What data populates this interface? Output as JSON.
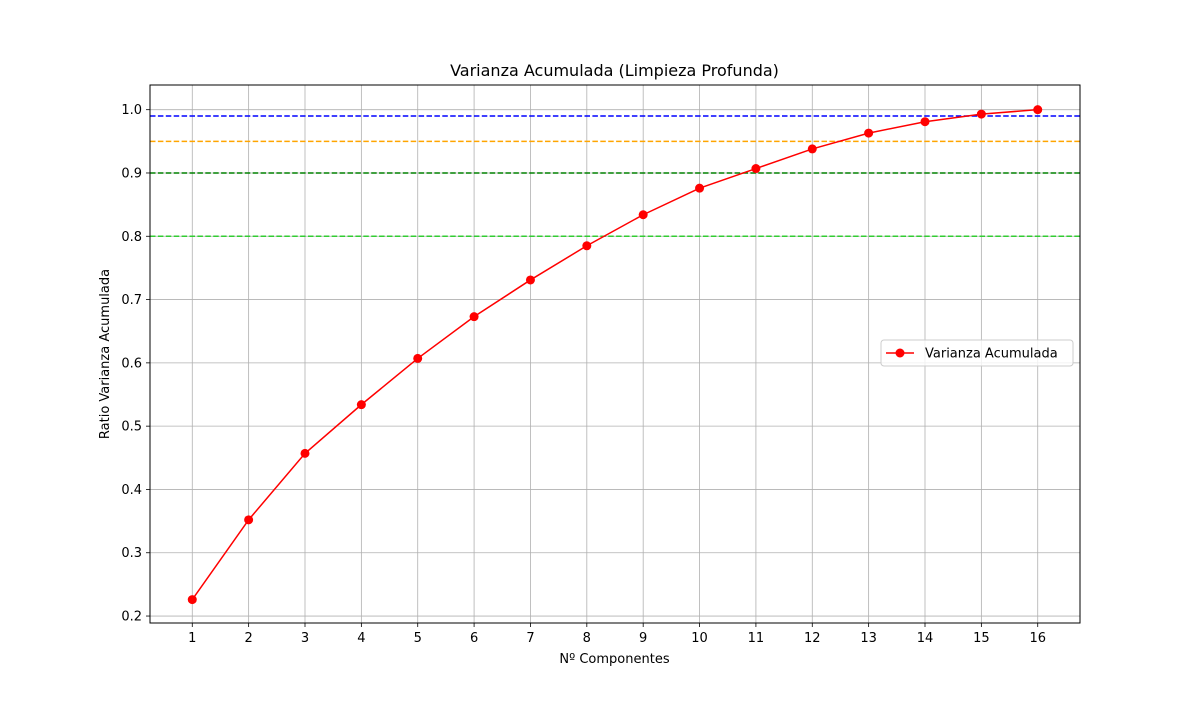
{
  "chart_data": {
    "type": "line",
    "title": "Varianza Acumulada (Limpieza Profunda)",
    "xlabel": "Nº Componentes",
    "ylabel": "Ratio Varianza Acumulada",
    "x": [
      1,
      2,
      3,
      4,
      5,
      6,
      7,
      8,
      9,
      10,
      11,
      12,
      13,
      14,
      15,
      16
    ],
    "x_tick_labels": [
      "1",
      "2",
      "3",
      "4",
      "5",
      "6",
      "7",
      "8",
      "9",
      "10",
      "11",
      "12",
      "13",
      "14",
      "15",
      "16"
    ],
    "y_tick_values": [
      0.2,
      0.3,
      0.4,
      0.5,
      0.6,
      0.7,
      0.8,
      0.9,
      1.0
    ],
    "y_tick_labels": [
      "0.2",
      "0.3",
      "0.4",
      "0.5",
      "0.6",
      "0.7",
      "0.8",
      "0.9",
      "1.0"
    ],
    "xlim": [
      0.25,
      16.75
    ],
    "ylim": [
      0.189,
      1.039
    ],
    "grid": true,
    "legend_position": "center-right",
    "series": [
      {
        "name": "Varianza Acumulada",
        "color": "#ff0000",
        "marker": "circle",
        "values": [
          0.226,
          0.352,
          0.457,
          0.534,
          0.607,
          0.673,
          0.731,
          0.785,
          0.834,
          0.876,
          0.907,
          0.938,
          0.963,
          0.981,
          0.993,
          1.0
        ]
      }
    ],
    "reference_lines": [
      {
        "y": 0.99,
        "color": "#0000ff",
        "style": "dashed"
      },
      {
        "y": 0.95,
        "color": "#ffa500",
        "style": "dashed"
      },
      {
        "y": 0.9,
        "color": "#008000",
        "style": "dashed"
      },
      {
        "y": 0.8,
        "color": "#32cd32",
        "style": "dashed"
      }
    ]
  }
}
